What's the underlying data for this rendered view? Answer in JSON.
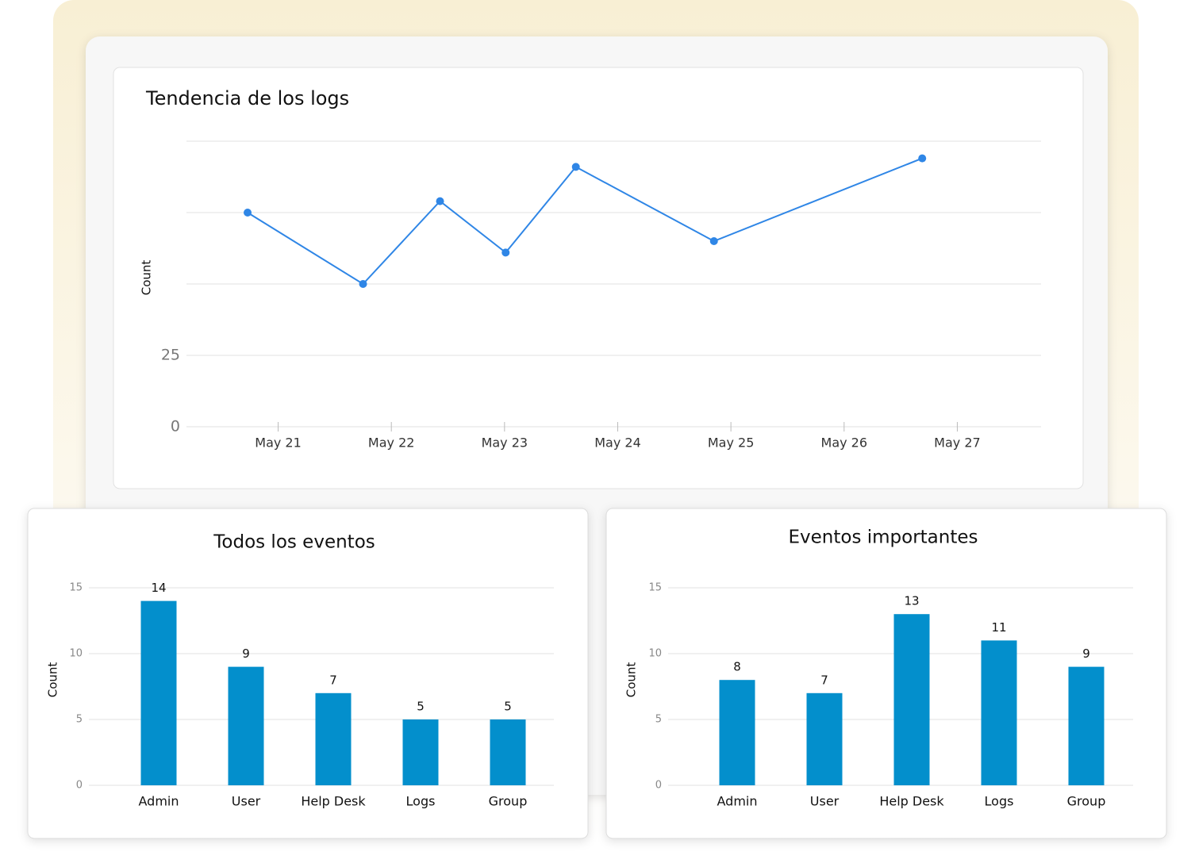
{
  "chart_data": [
    {
      "type": "line",
      "title": "Tendencia de los logs",
      "y_label": "Count",
      "x": [
        20.73,
        21.75,
        22.43,
        23.01,
        23.63,
        24.85,
        26.69
      ],
      "series": [
        {
          "color": "#2f86e6",
          "values": [
            75,
            50,
            79,
            61,
            91,
            65,
            94
          ]
        }
      ],
      "xlim": [
        20.19,
        27.74
      ],
      "xticks": [
        {
          "value": 21,
          "label": "May 21"
        },
        {
          "value": 22,
          "label": "May 22"
        },
        {
          "value": 23,
          "label": "May 23"
        },
        {
          "value": 24,
          "label": "May 24"
        },
        {
          "value": 25,
          "label": "May 25"
        },
        {
          "value": 26,
          "label": "May 26"
        },
        {
          "value": 27,
          "label": "May 27"
        }
      ],
      "ylim": [
        0,
        100
      ],
      "yticks": [
        0,
        25,
        {
          "value": 50,
          "label": null
        },
        {
          "value": 75,
          "label": null
        },
        {
          "value": 100,
          "label": null
        }
      ],
      "grid": true
    },
    {
      "type": "bar",
      "title": "Todos los eventos",
      "y_label": "Count",
      "categories": [
        "Admin",
        "User",
        "Help Desk",
        "Logs",
        "Group"
      ],
      "values": [
        14,
        9,
        7,
        5,
        5
      ],
      "color": "#038fcc",
      "ylim": [
        0,
        15
      ],
      "yticks": [
        0,
        5,
        10,
        15
      ],
      "grid": true
    },
    {
      "type": "bar",
      "title": "Eventos importantes",
      "y_label": "Count",
      "categories": [
        "Admin",
        "User",
        "Help Desk",
        "Logs",
        "Group"
      ],
      "values": [
        8,
        7,
        13,
        11,
        9
      ],
      "color": "#038fcc",
      "ylim": [
        0,
        15
      ],
      "yticks": [
        0,
        5,
        10,
        15
      ],
      "grid": true
    }
  ]
}
